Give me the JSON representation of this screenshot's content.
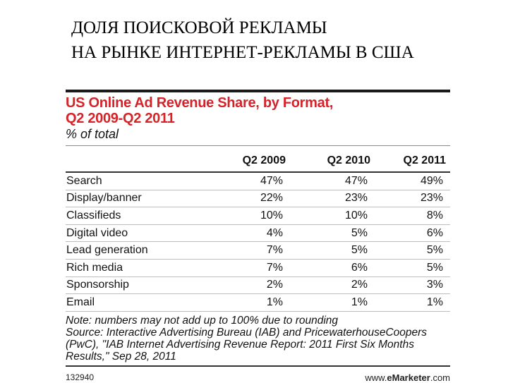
{
  "slide": {
    "title_line1": "ДОЛЯ ПОИСКОВОЙ РЕКЛАМЫ",
    "title_line2": "НА РЫНКЕ ИНТЕРНЕТ-РЕКЛАМЫ В США"
  },
  "figure": {
    "title_line1": "US Online Ad Revenue Share, by Format,",
    "title_line2": "Q2 2009-Q2 2011",
    "subtitle": "% of total",
    "accent_color": "#d6232a"
  },
  "chart_data": {
    "type": "table",
    "title": "US Online Ad Revenue Share, by Format, Q2 2009-Q2 2011",
    "unit": "% of total",
    "columns": [
      "",
      "Q2 2009",
      "Q2 2010",
      "Q2 2011"
    ],
    "rows": [
      [
        "Search",
        "47%",
        "47%",
        "49%"
      ],
      [
        "Display/banner",
        "22%",
        "23%",
        "23%"
      ],
      [
        "Classifieds",
        "10%",
        "10%",
        "8%"
      ],
      [
        "Digital video",
        "4%",
        "5%",
        "6%"
      ],
      [
        "Lead generation",
        "7%",
        "5%",
        "5%"
      ],
      [
        "Rich media",
        "7%",
        "6%",
        "5%"
      ],
      [
        "Sponsorship",
        "2%",
        "2%",
        "3%"
      ],
      [
        "Email",
        "1%",
        "1%",
        "1%"
      ]
    ]
  },
  "notes": {
    "line1": "Note: numbers may not add up to 100% due to rounding",
    "line2": "Source: Interactive Advertising Bureau (IAB) and PricewaterhouseCoopers",
    "line3": "(PwC), \"IAB Internet Advertising Revenue Report: 2011 First Six Months",
    "line4": "Results,\" Sep 28, 2011"
  },
  "footer": {
    "chart_id": "132940",
    "brand_prefix": "www.",
    "brand_bold": "eMarketer",
    "brand_suffix": ".com"
  }
}
